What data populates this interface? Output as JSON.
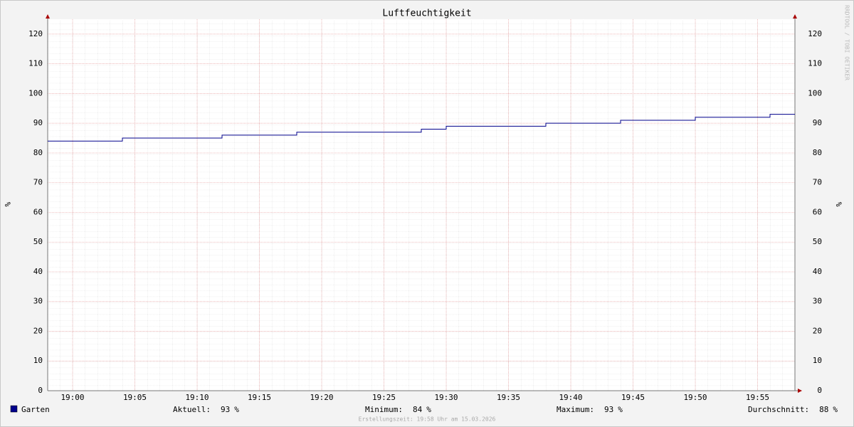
{
  "chart_data": {
    "type": "step-line",
    "title": "Luftfeuchtigkeit",
    "y_label": "%",
    "watermark": "RRDTOOL / TOBI OETIKER",
    "x": [
      "18:58",
      "19:04",
      "19:12",
      "19:18",
      "19:28",
      "19:30",
      "19:38",
      "19:44",
      "19:50",
      "19:56",
      "19:58"
    ],
    "series": [
      {
        "name": "Garten",
        "color": "#00008b",
        "values": [
          84,
          85,
          86,
          87,
          88,
          89,
          90,
          91,
          92,
          93,
          93
        ]
      }
    ],
    "xlim": [
      "18:58",
      "19:58"
    ],
    "xticks": [
      "19:00",
      "19:05",
      "19:10",
      "19:15",
      "19:20",
      "19:25",
      "19:30",
      "19:35",
      "19:40",
      "19:45",
      "19:50",
      "19:55"
    ],
    "ylim": [
      0,
      125
    ],
    "yticks": [
      0,
      10,
      20,
      30,
      40,
      50,
      60,
      70,
      80,
      90,
      100,
      110,
      120
    ],
    "grid": true,
    "stats": [
      {
        "label": "Aktuell:",
        "value": 93,
        "unit": "%"
      },
      {
        "label": "Minimum:",
        "value": 84,
        "unit": "%"
      },
      {
        "label": "Maximum:",
        "value": 93,
        "unit": "%"
      },
      {
        "label": "Durchschnitt:",
        "value": 88,
        "unit": "%"
      }
    ],
    "footer": "Erstellungszeit: 19:58 Uhr am 15.03.2026"
  }
}
